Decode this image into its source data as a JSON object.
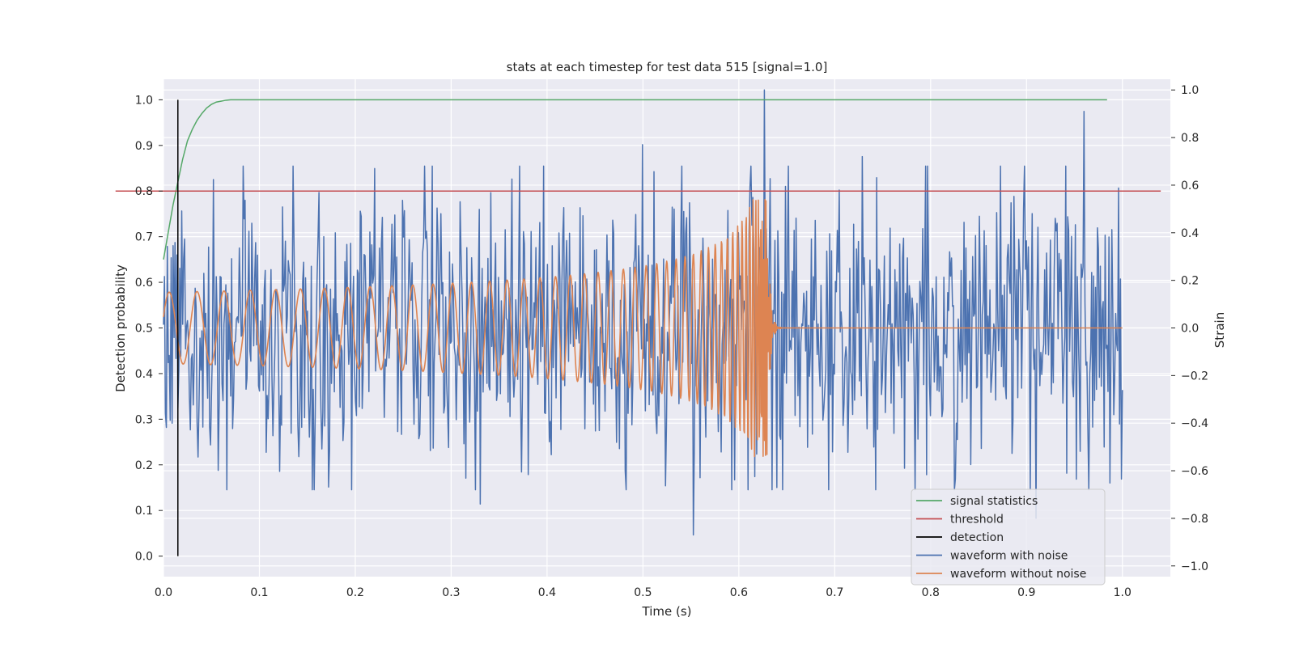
{
  "chart_data": {
    "type": "line",
    "title": "stats at each timestep for test data 515 [signal=1.0]",
    "xlabel": "Time (s)",
    "ylabel_left": "Detection probability",
    "ylabel_right": "Strain",
    "xlim": [
      0.0,
      1.05
    ],
    "ylim_left": [
      -0.045,
      1.045
    ],
    "ylim_right": [
      -1.045,
      1.045
    ],
    "x_ticks": [
      "0.0",
      "0.1",
      "0.2",
      "0.3",
      "0.4",
      "0.5",
      "0.6",
      "0.7",
      "0.8",
      "0.9",
      "1.0"
    ],
    "y_left_ticks": [
      "0.0",
      "0.1",
      "0.2",
      "0.3",
      "0.4",
      "0.5",
      "0.6",
      "0.7",
      "0.8",
      "0.9",
      "1.0"
    ],
    "y_right_ticks": [
      "−1.0",
      "−0.8",
      "−0.6",
      "−0.4",
      "−0.2",
      "0.0",
      "0.2",
      "0.4",
      "0.6",
      "0.8",
      "1.0"
    ],
    "grid": true,
    "legend_position": "lower-right",
    "colors": {
      "background": "#eaeaf2",
      "grid": "#ffffff",
      "signal_statistics": "#55a868",
      "threshold": "#c44e52",
      "detection": "#000000",
      "waveform_noise": "#4c72b0",
      "waveform_clean": "#dd8452"
    },
    "series": [
      {
        "name": "signal statistics",
        "axis": "left",
        "x": [
          0.0,
          0.005,
          0.01,
          0.015,
          0.02,
          0.025,
          0.03,
          0.035,
          0.04,
          0.045,
          0.05,
          0.055,
          0.06,
          0.065,
          0.07,
          0.08,
          0.1,
          0.2,
          0.3,
          0.4,
          0.5,
          0.6,
          0.7,
          0.8,
          0.9,
          0.984
        ],
        "y": [
          0.65,
          0.71,
          0.77,
          0.82,
          0.87,
          0.91,
          0.935,
          0.955,
          0.97,
          0.982,
          0.99,
          0.995,
          0.997,
          0.999,
          1.0,
          1.0,
          1.0,
          1.0,
          1.0,
          1.0,
          1.0,
          1.0,
          1.0,
          1.0,
          1.0,
          1.0
        ]
      },
      {
        "name": "threshold",
        "axis": "left",
        "x": [
          -0.05,
          1.04
        ],
        "y": [
          0.8,
          0.8
        ]
      },
      {
        "name": "detection",
        "axis": "left",
        "x": [
          0.015,
          0.015
        ],
        "y": [
          0.0,
          1.0
        ]
      },
      {
        "name": "waveform with noise",
        "axis": "right",
        "generated": "noise",
        "x_range": [
          0.0,
          1.0
        ],
        "sample_count": 1000,
        "amplitude_std": 0.3,
        "peaks": [
          {
            "x": 0.627,
            "y": 1.0
          },
          {
            "x": 0.96,
            "y": 0.91
          },
          {
            "x": 0.553,
            "y": -0.87
          },
          {
            "x": 0.33,
            "y": -0.74
          },
          {
            "x": 0.499,
            "y": 0.77
          },
          {
            "x": 0.729,
            "y": 0.72
          },
          {
            "x": 0.22,
            "y": 0.67
          },
          {
            "x": 0.91,
            "y": -0.8
          }
        ]
      },
      {
        "name": "waveform without noise",
        "axis": "right",
        "generated": "chirp",
        "x_range": [
          0.0,
          1.0
        ],
        "merger_time": 0.63,
        "peak_amplitude": 0.54,
        "base_amplitude": 0.15
      }
    ]
  }
}
